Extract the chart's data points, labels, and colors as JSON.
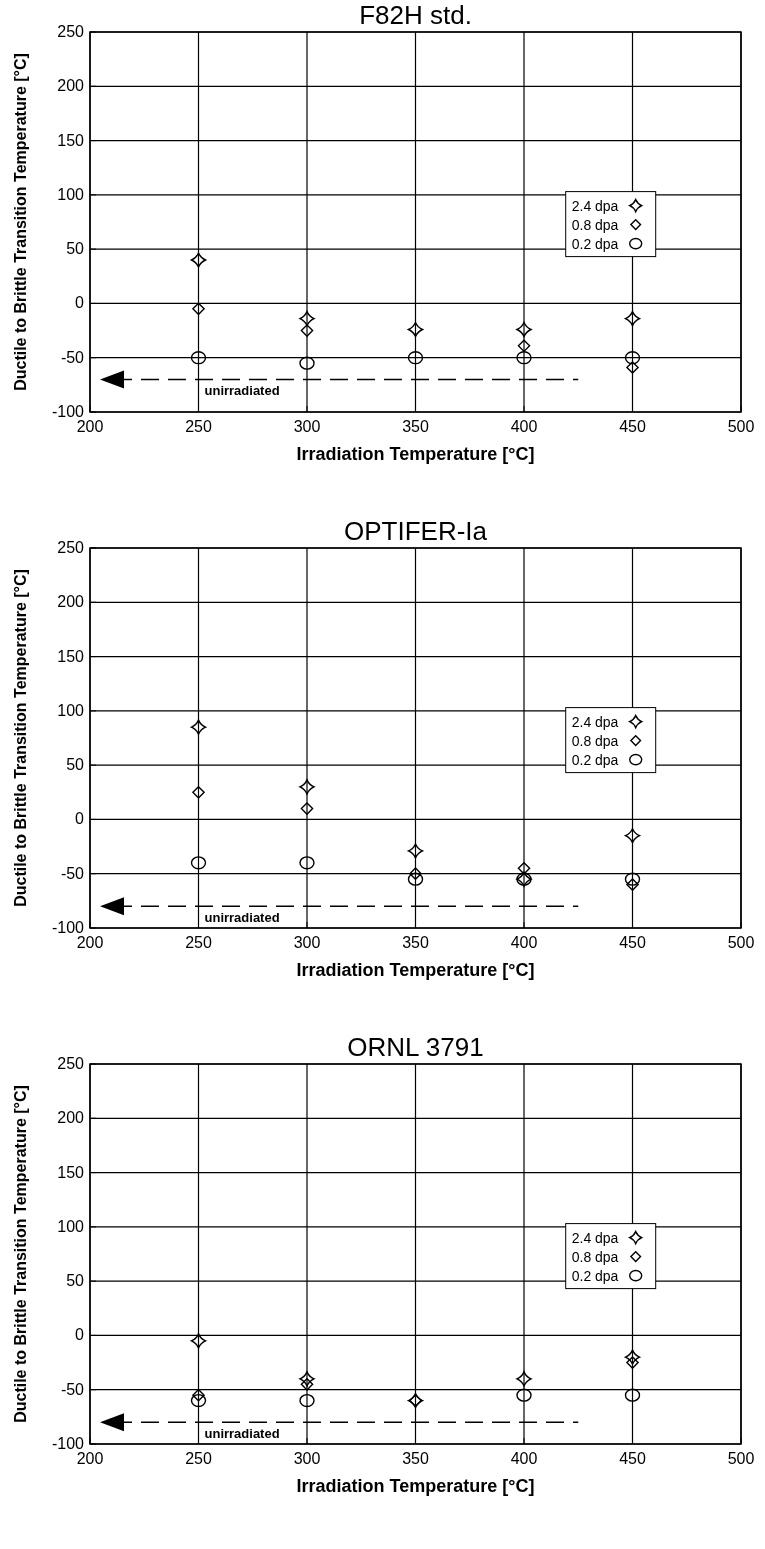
{
  "chart_data": [
    {
      "type": "scatter",
      "title": "F82H std.",
      "xlabel": "Irradiation Temperature [°C]",
      "ylabel": "Ductile to Brittle Transition Temperature [°C]",
      "x": [
        250,
        300,
        350,
        400,
        450
      ],
      "xlim": [
        200,
        500
      ],
      "xticks": [
        200,
        250,
        300,
        350,
        400,
        450,
        500
      ],
      "ylim": [
        -100,
        250
      ],
      "yticks": [
        -100,
        -50,
        0,
        50,
        100,
        150,
        200,
        250
      ],
      "grid": true,
      "legend": "right",
      "series": [
        {
          "name": "2.4 dpa",
          "color": "#000000",
          "marker": "star",
          "values": [
            40,
            -14,
            -24,
            -24,
            -14
          ]
        },
        {
          "name": "0.8 dpa",
          "color": "#000000",
          "marker": "diamond",
          "values": [
            -5,
            -25,
            null,
            -39,
            -59
          ]
        },
        {
          "name": "0.2 dpa",
          "color": "#000000",
          "marker": "circle",
          "values": [
            -50,
            -55,
            -50,
            -50,
            -50
          ]
        }
      ],
      "ref_lines": [
        {
          "axis": "y",
          "value": -70,
          "label": "unirradiated",
          "line_style": "dashed",
          "color": "#000000"
        }
      ]
    },
    {
      "type": "scatter",
      "title": "OPTIFER-Ia",
      "xlabel": "Irradiation Temperature [°C]",
      "ylabel": "Ductile to Brittle Transition Temperature [°C]",
      "x": [
        250,
        300,
        350,
        400,
        450
      ],
      "xlim": [
        200,
        500
      ],
      "xticks": [
        200,
        250,
        300,
        350,
        400,
        450,
        500
      ],
      "ylim": [
        -100,
        250
      ],
      "yticks": [
        -100,
        -50,
        0,
        50,
        100,
        150,
        200,
        250
      ],
      "grid": true,
      "legend": "right",
      "series": [
        {
          "name": "2.4 dpa",
          "color": "#000000",
          "marker": "star",
          "values": [
            85,
            30,
            -29,
            -55,
            -15
          ]
        },
        {
          "name": "0.8 dpa",
          "color": "#000000",
          "marker": "diamond",
          "values": [
            25,
            10,
            -50,
            -45,
            -60
          ]
        },
        {
          "name": "0.2 dpa",
          "color": "#000000",
          "marker": "circle",
          "values": [
            -40,
            -40,
            -55,
            -55,
            -55
          ]
        }
      ],
      "ref_lines": [
        {
          "axis": "y",
          "value": -80,
          "label": "unirradiated",
          "line_style": "dashed",
          "color": "#000000"
        }
      ]
    },
    {
      "type": "scatter",
      "title": "ORNL 3791",
      "xlabel": "Irradiation Temperature [°C]",
      "ylabel": "Ductile to Brittle Transition Temperature [°C]",
      "x": [
        250,
        300,
        350,
        400,
        450
      ],
      "xlim": [
        200,
        500
      ],
      "xticks": [
        200,
        250,
        300,
        350,
        400,
        450,
        500
      ],
      "ylim": [
        -100,
        250
      ],
      "yticks": [
        -100,
        -50,
        0,
        50,
        100,
        150,
        200,
        250
      ],
      "grid": true,
      "legend": "right",
      "series": [
        {
          "name": "2.4 dpa",
          "color": "#000000",
          "marker": "star",
          "values": [
            -5,
            -40,
            -60,
            -40,
            -20
          ]
        },
        {
          "name": "0.8 dpa",
          "color": "#000000",
          "marker": "diamond",
          "values": [
            -55,
            -45,
            -60,
            null,
            -25
          ]
        },
        {
          "name": "0.2 dpa",
          "color": "#000000",
          "marker": "circle",
          "values": [
            -60,
            -60,
            null,
            -55,
            -55
          ]
        }
      ],
      "ref_lines": [
        {
          "axis": "y",
          "value": -80,
          "label": "unirradiated",
          "line_style": "dashed",
          "color": "#000000"
        }
      ]
    }
  ]
}
